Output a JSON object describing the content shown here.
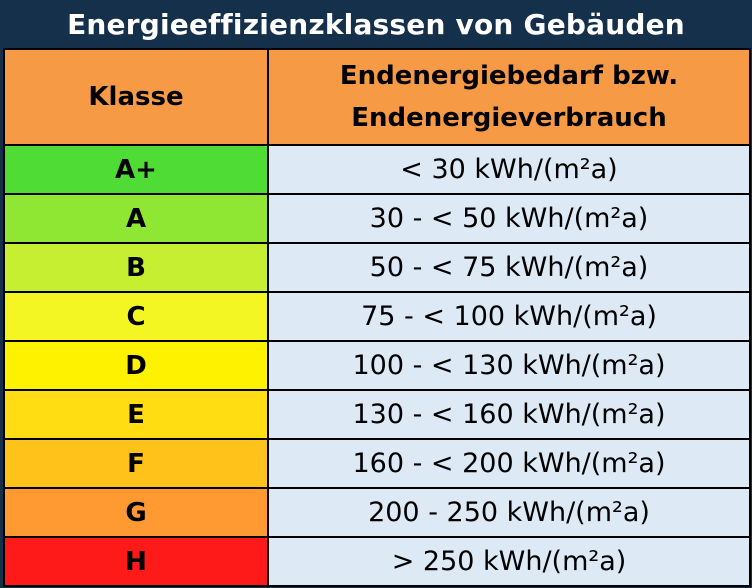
{
  "title": "Energieeffizienzklassen von Gebäuden",
  "header": {
    "klasse": "Klasse",
    "bedarf_line1": "Endenergiebedarf bzw.",
    "bedarf_line2": "Endenergieverbrauch"
  },
  "rows": [
    {
      "klasse": "A+",
      "value": "< 30 kWh/(m²a)",
      "color": "#4fdc35"
    },
    {
      "klasse": "A",
      "value": "30 - < 50 kWh/(m²a)",
      "color": "#8fe733"
    },
    {
      "klasse": "B",
      "value": "50 - < 75 kWh/(m²a)",
      "color": "#c6ef31"
    },
    {
      "klasse": "C",
      "value": "75 - < 100 kWh/(m²a)",
      "color": "#f3f622"
    },
    {
      "klasse": "D",
      "value": "100 - < 130 kWh/(m²a)",
      "color": "#fff200"
    },
    {
      "klasse": "E",
      "value": "130 - < 160 kWh/(m²a)",
      "color": "#ffdd12"
    },
    {
      "klasse": "F",
      "value": "160 - < 200 kWh/(m²a)",
      "color": "#ffc21b"
    },
    {
      "klasse": "G",
      "value": "200 - 250 kWh/(m²a)",
      "color": "#ff9a33"
    },
    {
      "klasse": "H",
      "value": "> 250 kWh/(m²a)",
      "color": "#ff1a1a"
    }
  ],
  "colors": {
    "title_background": "#15304a",
    "header_background": "#f79a45",
    "value_background": "#dde9f5"
  }
}
